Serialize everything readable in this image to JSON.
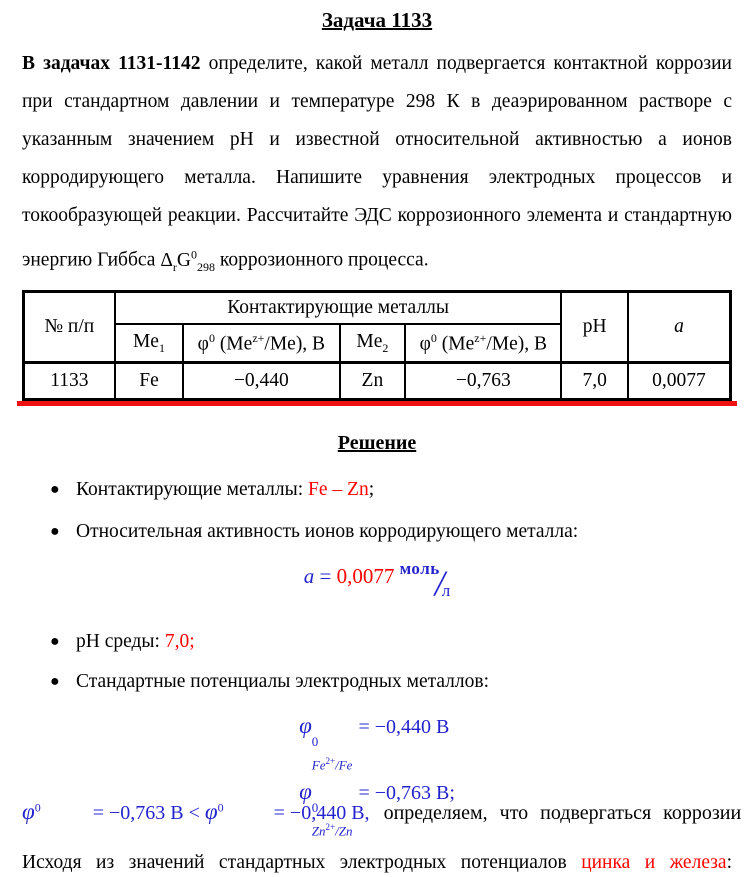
{
  "title": "Задача 1133",
  "problem": {
    "lead_bold": "В задачах  1131-1142",
    "body1": " определите, какой металл подвергается контактной коррозии при стандартном давлении и температуре 298 К в деаэрированном растворе с указанным значением pH и известной относительной активностью а ионов корродирующего металла. Напишите уравнения электродных процессов и токообразующей реакции. Рассчитайте ЭДС коррозионного элемента и стандартную энергию Гиббса ",
    "gibbs_delta": "Δ",
    "gibbs_sub_r": "r",
    "gibbs_g": "G",
    "gibbs_sup0": "0",
    "gibbs_sub298": "298",
    "body2": " коррозионного процесса."
  },
  "table": {
    "header_num": "№ п/п",
    "header_group": "Контактирующие металлы",
    "header_ph": "pH",
    "header_a": "a",
    "me_base": "Me",
    "me1_idx": "1",
    "me2_idx": "2",
    "phi_phi": "φ",
    "phi_sup": "0",
    "phi_open": " (Me",
    "phi_zsup": "z+",
    "phi_close": "/Me), В",
    "row": {
      "num": "1133",
      "me1": "Fe",
      "phi1": "−0,440",
      "me2": "Zn",
      "phi2": "−0,763",
      "ph": "7,0",
      "a": "0,0077"
    }
  },
  "solution": {
    "heading": "Решение",
    "bullet_char": "●",
    "bullet1_label": "Контактирующие металлы: ",
    "bullet1_value": "Fe – Zn",
    "bullet1_end": ";",
    "bullet2": "Относительная активность ионов корродирующего металла:",
    "activity": {
      "lhs": "a",
      "eq": " = ",
      "value": "0,0077",
      "unit_num": "моль",
      "unit_slash": "/",
      "unit_den": "л"
    },
    "bullet3_label": "pH среды: ",
    "bullet3_value": "7,0;",
    "bullet4": "Стандартные потенциалы электродных металлов:",
    "phi_fe": {
      "phi": "φ",
      "sup": "0",
      "sub_m1": "Fe",
      "sub_c": "2+",
      "sub_sep": "/",
      "sub_m2": "Fe",
      "rhs": "= −0,440 В"
    },
    "phi_zn": {
      "phi": "φ",
      "sup": "0",
      "sub_m1": "Zn",
      "sub_c": "2+",
      "sub_sep": "/",
      "sub_m2": "Zn",
      "rhs": "= −0,763 В;"
    }
  },
  "closing": {
    "text_black": "Исходя из значений стандартных электродных потенциалов ",
    "text_red": "цинка и железа",
    "colon": ":",
    "line2": {
      "phi1": "φ",
      "sup1": "0",
      "eq1": "= −0,763 В ",
      "lt": "< ",
      "phi2": "φ",
      "sup2": "0",
      "eq2": "= −0,440 В,",
      "tail": "определяем, что подвергаться коррозии"
    }
  },
  "colors": {
    "accent_red": "#ff0000",
    "formula_blue": "#2424cf",
    "table_rule_red": "#ee1111"
  }
}
